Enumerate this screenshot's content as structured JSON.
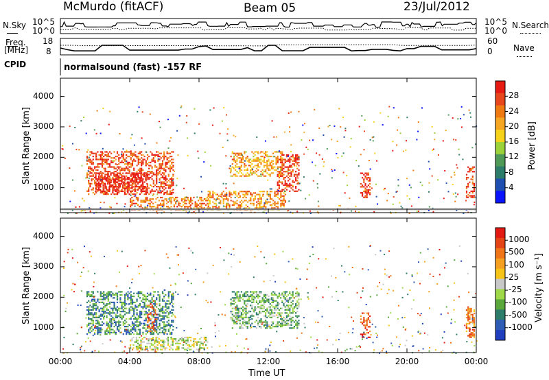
{
  "header": {
    "station": "McMurdo (fitACF)",
    "beam": "Beam 05",
    "date": "23/Jul/2012"
  },
  "summary": {
    "nsky_label": "N.Sky",
    "nsearch_label": "N.Search",
    "freq_label_line1": "Freq.",
    "freq_label_line2": "[MHz]",
    "nave_label": "Nave",
    "cpid_label": "CPID",
    "cpid_text": "normalsound (fast) -157 RF",
    "noise_left_ticks": [
      "10^5",
      "10^0"
    ],
    "noise_right_ticks": [
      "10^5",
      "10^0"
    ],
    "freq_ticks": [
      "18",
      "8"
    ],
    "nave_ticks": [
      "60",
      "0"
    ]
  },
  "colors": {
    "power_scale": [
      "#0a14ff",
      "#1f4fb0",
      "#2e7d6a",
      "#4f9a57",
      "#9bd23a",
      "#f6d21a",
      "#f5a623",
      "#f07a12",
      "#e8461c",
      "#e81a14"
    ],
    "velocity_scale": [
      "#1f3fbf",
      "#2f5db5",
      "#2e7d6a",
      "#5aa83c",
      "#9fd94a",
      "#c8c8c8",
      "#f6c518",
      "#f5a021",
      "#f07418",
      "#e44416",
      "#e31a14"
    ]
  },
  "chart_data": [
    {
      "type": "heatmap",
      "name": "power-panel",
      "xlabel": "",
      "ylabel": "Slant Range [km]",
      "xlim": [
        0,
        24
      ],
      "ylim": [
        180,
        4600
      ],
      "yticks": [
        "1000",
        "2000",
        "3000",
        "4000"
      ],
      "colorbar": {
        "label": "Power [dB]",
        "range": [
          0,
          32
        ],
        "ticks": [
          "4",
          "8",
          "12",
          "16",
          "20",
          "24",
          "28"
        ]
      },
      "echo_regions": [
        {
          "t_start": 1.5,
          "t_end": 6.5,
          "r_min": 800,
          "r_max": 2200,
          "level": 0.85
        },
        {
          "t_start": 2.0,
          "t_end": 5.0,
          "r_min": 900,
          "r_max": 1500,
          "level": 0.95
        },
        {
          "t_start": 4.0,
          "t_end": 8.5,
          "r_min": 300,
          "r_max": 700,
          "level": 0.75
        },
        {
          "t_start": 8.5,
          "t_end": 13.0,
          "r_min": 300,
          "r_max": 900,
          "level": 0.7
        },
        {
          "t_start": 9.8,
          "t_end": 12.8,
          "r_min": 1400,
          "r_max": 2200,
          "level": 0.65
        },
        {
          "t_start": 12.5,
          "t_end": 13.8,
          "r_min": 900,
          "r_max": 2100,
          "level": 0.9
        },
        {
          "t_start": 17.3,
          "t_end": 17.9,
          "r_min": 700,
          "r_max": 1500,
          "level": 0.9
        },
        {
          "t_start": 23.4,
          "t_end": 23.9,
          "r_min": 700,
          "r_max": 1700,
          "level": 0.9
        }
      ]
    },
    {
      "type": "heatmap",
      "name": "velocity-panel",
      "xlabel": "Time UT",
      "ylabel": "Slant Range [km]",
      "xlim": [
        0,
        24
      ],
      "ylim": [
        180,
        4600
      ],
      "xticks": [
        "00:00",
        "04:00",
        "08:00",
        "12:00",
        "16:00",
        "20:00",
        "00:00"
      ],
      "yticks": [
        "1000",
        "2000",
        "3000",
        "4000"
      ],
      "colorbar": {
        "label": "Velocity [m s⁻¹]",
        "range": [
          -1000,
          1000
        ],
        "ticks": [
          "1000",
          "500",
          "100",
          "25",
          "-25",
          "-100",
          "-500",
          "-1000"
        ]
      },
      "echo_regions": [
        {
          "t_start": 1.5,
          "t_end": 6.5,
          "r_min": 800,
          "r_max": 2200,
          "level": 0.25
        },
        {
          "t_start": 5.0,
          "t_end": 5.6,
          "r_min": 900,
          "r_max": 1800,
          "level": 0.8
        },
        {
          "t_start": 4.0,
          "t_end": 8.5,
          "r_min": 300,
          "r_max": 700,
          "level": 0.45
        },
        {
          "t_start": 9.8,
          "t_end": 13.8,
          "r_min": 1000,
          "r_max": 2200,
          "level": 0.35
        },
        {
          "t_start": 17.3,
          "t_end": 17.9,
          "r_min": 700,
          "r_max": 1500,
          "level": 0.85
        },
        {
          "t_start": 23.4,
          "t_end": 23.9,
          "r_min": 700,
          "r_max": 1700,
          "level": 0.75
        }
      ]
    }
  ]
}
